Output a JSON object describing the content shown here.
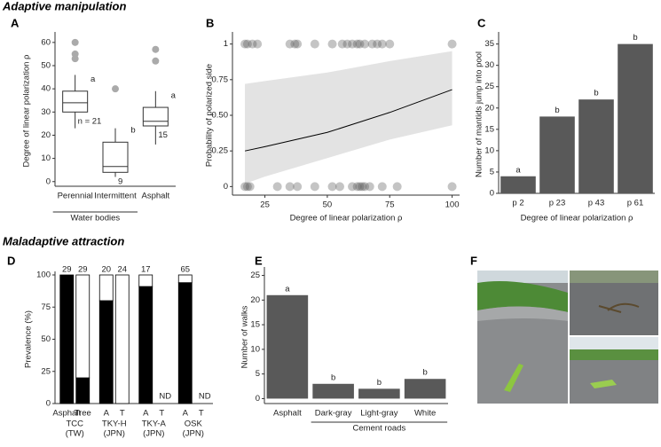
{
  "headings": [
    "Adaptive manipulation",
    "Maladaptive attraction"
  ],
  "chart_data": [
    {
      "type": "box",
      "panel": "A",
      "ylabel": "Degree of linear polarization ρ",
      "categories": [
        "Perennial",
        "Intermittent",
        "Asphalt"
      ],
      "group_label": "Water bodies",
      "boxes": [
        {
          "min": 23,
          "q1": 30,
          "median": 34,
          "q3": 39,
          "max": 46,
          "outliers": [
            53,
            55,
            60
          ]
        },
        {
          "min": 2,
          "q1": 4,
          "median": 6.5,
          "q3": 17,
          "max": 23,
          "outliers": [
            40
          ]
        },
        {
          "min": 16,
          "q1": 24,
          "median": 26,
          "q3": 32,
          "max": 39,
          "outliers": [
            52,
            57
          ]
        }
      ],
      "letters": [
        "a",
        "b",
        "a"
      ],
      "n_labels": [
        "n = 21",
        "9",
        "15"
      ],
      "ylim": [
        -2,
        63
      ],
      "yticks": [
        0,
        10,
        20,
        30,
        40,
        50,
        60
      ],
      "color": "#aaaaaa"
    },
    {
      "type": "scatter",
      "panel": "B",
      "ylabel": "Probability of polarized side",
      "xlabel": "Degree of linear polarization ρ",
      "x": [
        17,
        18,
        20,
        22,
        35,
        37,
        38,
        45,
        52,
        56,
        58,
        60,
        62,
        63,
        65,
        68,
        70,
        72,
        75,
        100,
        17,
        18,
        19,
        30,
        35,
        38,
        45,
        52,
        55,
        60,
        62,
        63,
        64,
        65,
        67,
        72,
        78,
        100
      ],
      "y": [
        1,
        1,
        1,
        1,
        1,
        1,
        1,
        1,
        1,
        1,
        1,
        1,
        1,
        1,
        1,
        1,
        1,
        1,
        1,
        1,
        0,
        0,
        0,
        0,
        0,
        0,
        0,
        0,
        0,
        0,
        0,
        0,
        0,
        0,
        0,
        0,
        0,
        0
      ],
      "fit": {
        "x": [
          17,
          25,
          50,
          75,
          100
        ],
        "y": [
          0.25,
          0.28,
          0.38,
          0.52,
          0.68
        ]
      },
      "band_upper": [
        0.72,
        0.74,
        0.8,
        0.88,
        0.95
      ],
      "band_lower": [
        0.02,
        0.07,
        0.2,
        0.33,
        0.43
      ],
      "xlim": [
        12,
        103
      ],
      "xticks": [
        25,
        50,
        75,
        100
      ],
      "ylim": [
        -0.06,
        1.06
      ],
      "yticks": [
        0,
        0.25,
        {
          "value": 0.5,
          "label": "0.50"
        },
        0.75,
        1
      ],
      "color": "#555555"
    },
    {
      "type": "bar",
      "panel": "C",
      "ylabel": "Number of mantids jump into pool",
      "xlabel": "Degree of linear polarization ρ",
      "categories": [
        "p 2",
        "p 23",
        "p 43",
        "p 61"
      ],
      "values": [
        4,
        18,
        22,
        35
      ],
      "letters": [
        "a",
        "b",
        "b",
        "b"
      ],
      "ylim": [
        0,
        37
      ],
      "yticks": [
        0,
        5,
        10,
        15,
        20,
        25,
        30,
        35
      ],
      "color": "#595959"
    },
    {
      "type": "stacked_bar",
      "panel": "D",
      "ylabel": "Prevalence (%)",
      "categories": [
        "Asphalt",
        "Tree",
        "A",
        "T",
        "A",
        "T",
        "A",
        "T"
      ],
      "series": [
        {
          "color": "#000000",
          "values": [
            100,
            20,
            80,
            0,
            91,
            null,
            94,
            null
          ]
        },
        {
          "color": "#ffffff",
          "values": [
            0,
            80,
            20,
            100,
            9,
            null,
            6,
            null
          ]
        }
      ],
      "counts": [
        29,
        29,
        20,
        24,
        17,
        null,
        65,
        null
      ],
      "missing_labels": [
        null,
        null,
        null,
        null,
        null,
        "ND",
        null,
        "ND"
      ],
      "groups": [
        {
          "site": "TCC",
          "country": "(TW)"
        },
        {
          "site": "TKY-H",
          "country": "(JPN)"
        },
        {
          "site": "TKY-A",
          "country": "(JPN)"
        },
        {
          "site": "OSK",
          "country": "(JPN)"
        }
      ],
      "ylim": [
        0,
        100
      ],
      "yticks": [
        0,
        25,
        50,
        75,
        100
      ]
    },
    {
      "type": "bar",
      "panel": "E",
      "ylabel": "Number of walks",
      "categories": [
        "Asphalt",
        "Dark-gray",
        "Light-gray",
        "White"
      ],
      "values": [
        21,
        3,
        2,
        4
      ],
      "letters": [
        "a",
        "b",
        "b",
        "b"
      ],
      "group_label": "Cement roads",
      "ylim": [
        -1,
        26
      ],
      "yticks": [
        0,
        5,
        10,
        15,
        20,
        25
      ],
      "color": "#595959"
    },
    {
      "type": "image",
      "panel": "F"
    }
  ]
}
